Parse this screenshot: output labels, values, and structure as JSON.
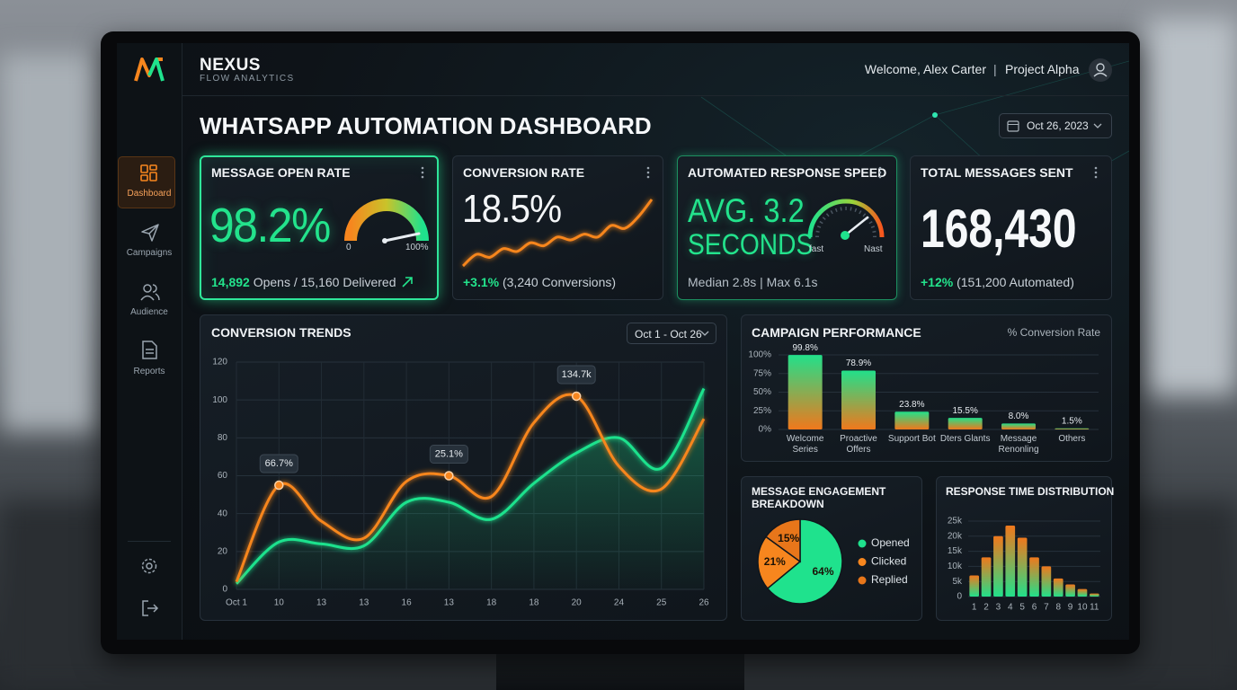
{
  "header": {
    "logo": "NEXUS",
    "logo_subtitle": "FLOW ANALYTICS",
    "welcome": "Welcome, Alex Carter",
    "separator": "|",
    "project": "Project Alpha"
  },
  "sidebar": {
    "items": [
      "Dashboard",
      "Campaigns",
      "Audience",
      "Reports"
    ]
  },
  "page_title": "WHATSAPP AUTOMATION DASHBOARD",
  "date": "Oct 26, 2023",
  "kpis": [
    {
      "title": "MESSAGE OPEN RATE",
      "value": "98.2%",
      "gauge_min": "0",
      "gauge_max": "100%",
      "highlight": "14,892",
      "detail": "Opens / 15,160 Delivered"
    },
    {
      "title": "CONVERSION RATE",
      "value": "18.5%",
      "highlight": "+3.1%",
      "detail": "(3,240 Conversions)"
    },
    {
      "title": "AUTOMATED RESPONSE SPEED",
      "value_lines": [
        "AVG. 3.2",
        "SECONDS"
      ],
      "gauge_min": "fast",
      "gauge_max": "Nast",
      "detail": "Median 2.8s | Max 6.1s"
    },
    {
      "title": "TOTAL MESSAGES SENT",
      "value": "168,430",
      "highlight": "+12%",
      "detail": "(151,200 Automated)"
    }
  ],
  "chart_data": [
    {
      "type": "line",
      "title": "CONVERSION TRENDS",
      "range": "Oct 1 - Oct 26",
      "categories": [
        "Oct 1",
        "10",
        "13",
        "13",
        "16",
        "13",
        "18",
        "18",
        "20",
        "24",
        "25",
        "26"
      ],
      "series": [
        {
          "color": "#f7861e",
          "values": [
            4,
            55,
            36,
            27,
            57,
            60,
            49,
            88,
            102,
            65,
            53,
            90
          ]
        },
        {
          "color": "#1fe28d",
          "area": true,
          "values": [
            3,
            25,
            24,
            23,
            46,
            46,
            37,
            56,
            72,
            80,
            64,
            106
          ]
        }
      ],
      "annotations": [
        "66.7%",
        "25.1%",
        "134.7k"
      ],
      "ylim": [
        0,
        120
      ],
      "yticks": [
        0,
        20,
        40,
        60,
        80,
        100,
        120
      ],
      "grid": true
    },
    {
      "type": "bar",
      "title": "CAMPAIGN PERFORMANCE",
      "subtitle": "% Conversion Rate",
      "categories": [
        "Welcome Series",
        "Proactive Offers",
        "Support Bot",
        "Dters Glants",
        "Message Renonling",
        "Others"
      ],
      "values": [
        99.8,
        78.9,
        23.8,
        15.5,
        8.0,
        1.5
      ],
      "value_labels": [
        "99.8%",
        "78.9%",
        "23.8%",
        "15.5%",
        "8.0%",
        "1.5%"
      ],
      "ylim": [
        0,
        100
      ],
      "yticks": [
        {
          "value": 0,
          "label": "0%"
        },
        {
          "value": 25,
          "label": "25%"
        },
        {
          "value": 50,
          "label": "50%"
        },
        {
          "value": 75,
          "label": "75%"
        },
        {
          "value": 100,
          "label": "100%"
        }
      ],
      "grid": true,
      "gradient": [
        "#22e08a",
        "#f0781c"
      ]
    },
    {
      "type": "pie",
      "title": "MESSAGE ENGAGEMENT BREAKDOWN",
      "categories": [
        "Opened",
        "Clicked",
        "Replied"
      ],
      "values": [
        64,
        21,
        15
      ],
      "value_labels": [
        "64%",
        "21%",
        "15%"
      ],
      "colors": [
        "#1fe28d",
        "#f7861e",
        "#e8761a"
      ]
    },
    {
      "type": "bar",
      "title": "RESPONSE TIME DISTRIBUTION",
      "categories": [
        "1",
        "2",
        "3",
        "4",
        "5",
        "6",
        "7",
        "8",
        "9",
        "10",
        "11"
      ],
      "values": [
        7000,
        13000,
        20000,
        23500,
        19500,
        13000,
        10000,
        6000,
        4000,
        2500,
        1000
      ],
      "ylim": [
        0,
        25000
      ],
      "yticks": [
        0,
        {
          "value": 5000,
          "label": "5k"
        },
        {
          "value": 10000,
          "label": "10k"
        },
        {
          "value": 15000,
          "label": "15k"
        },
        {
          "value": 20000,
          "label": "20k"
        },
        {
          "value": 25000,
          "label": "25k"
        }
      ],
      "grid": true,
      "gradient": [
        "#f0781c",
        "#22e08a"
      ]
    },
    {
      "type": "line",
      "color": "#f7861e",
      "values": [
        2,
        6,
        5,
        8,
        7,
        10,
        9,
        12,
        11,
        13,
        12,
        16,
        15,
        19,
        25
      ]
    }
  ]
}
